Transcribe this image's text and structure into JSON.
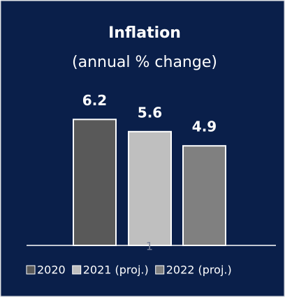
{
  "chart_data": {
    "type": "bar",
    "title": "Inflation",
    "subtitle": "(annual % change)",
    "categories": [
      "2020",
      "2021 (proj.)",
      "2022 (proj.)"
    ],
    "values": [
      6.2,
      5.6,
      4.9
    ],
    "colors": [
      "#595959",
      "#bfbfbf",
      "#808080"
    ],
    "ylim": [
      0,
      7
    ],
    "legend": "bottom",
    "page_number": "1"
  }
}
